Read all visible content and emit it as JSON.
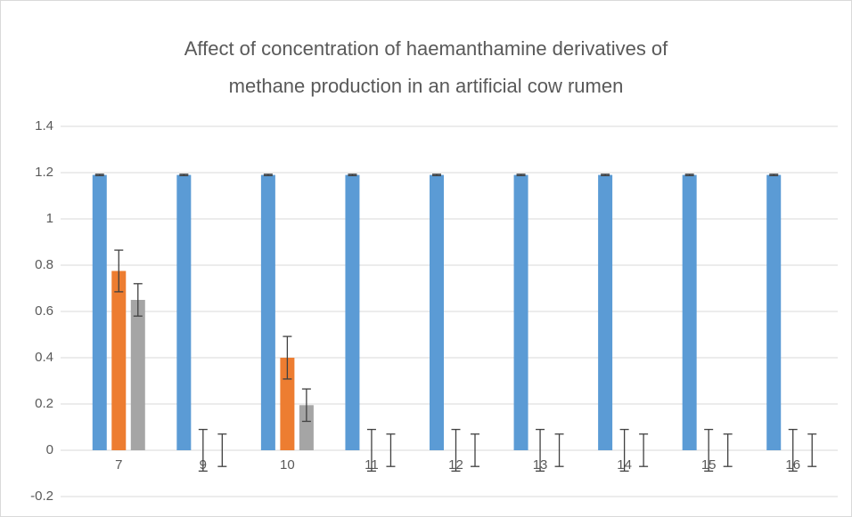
{
  "chart_data": {
    "type": "bar",
    "title": "Affect of concentration of haemanthamine derivatives of methane production in an artificial cow rumen",
    "categories": [
      "7",
      "9",
      "10",
      "11",
      "12",
      "13",
      "14",
      "15",
      "16"
    ],
    "series": [
      {
        "color": "#5b9bd5",
        "values": [
          1.19,
          1.19,
          1.19,
          1.19,
          1.19,
          1.19,
          1.19,
          1.19,
          1.19
        ],
        "errors": [
          0.003,
          0.003,
          0.003,
          0.003,
          0.003,
          0.003,
          0.003,
          0.003,
          0.003
        ]
      },
      {
        "color": "#ed7d31",
        "values": [
          0.775,
          0,
          0.4,
          0,
          0,
          0,
          0,
          0,
          0
        ],
        "errors": [
          0.09,
          0.09,
          0.092,
          0.09,
          0.09,
          0.09,
          0.09,
          0.09,
          0.09
        ]
      },
      {
        "color": "#a5a5a5",
        "values": [
          0.65,
          0,
          0.195,
          0,
          0,
          0,
          0,
          0,
          0
        ],
        "errors": [
          0.07,
          0.07,
          0.07,
          0.07,
          0.07,
          0.07,
          0.07,
          0.07,
          0.07
        ]
      }
    ],
    "ylim": [
      -0.2,
      1.4
    ],
    "yticks": [
      -0.2,
      0,
      0.2,
      0.4,
      0.6,
      0.8,
      1,
      1.2,
      1.4
    ],
    "grid": true
  }
}
